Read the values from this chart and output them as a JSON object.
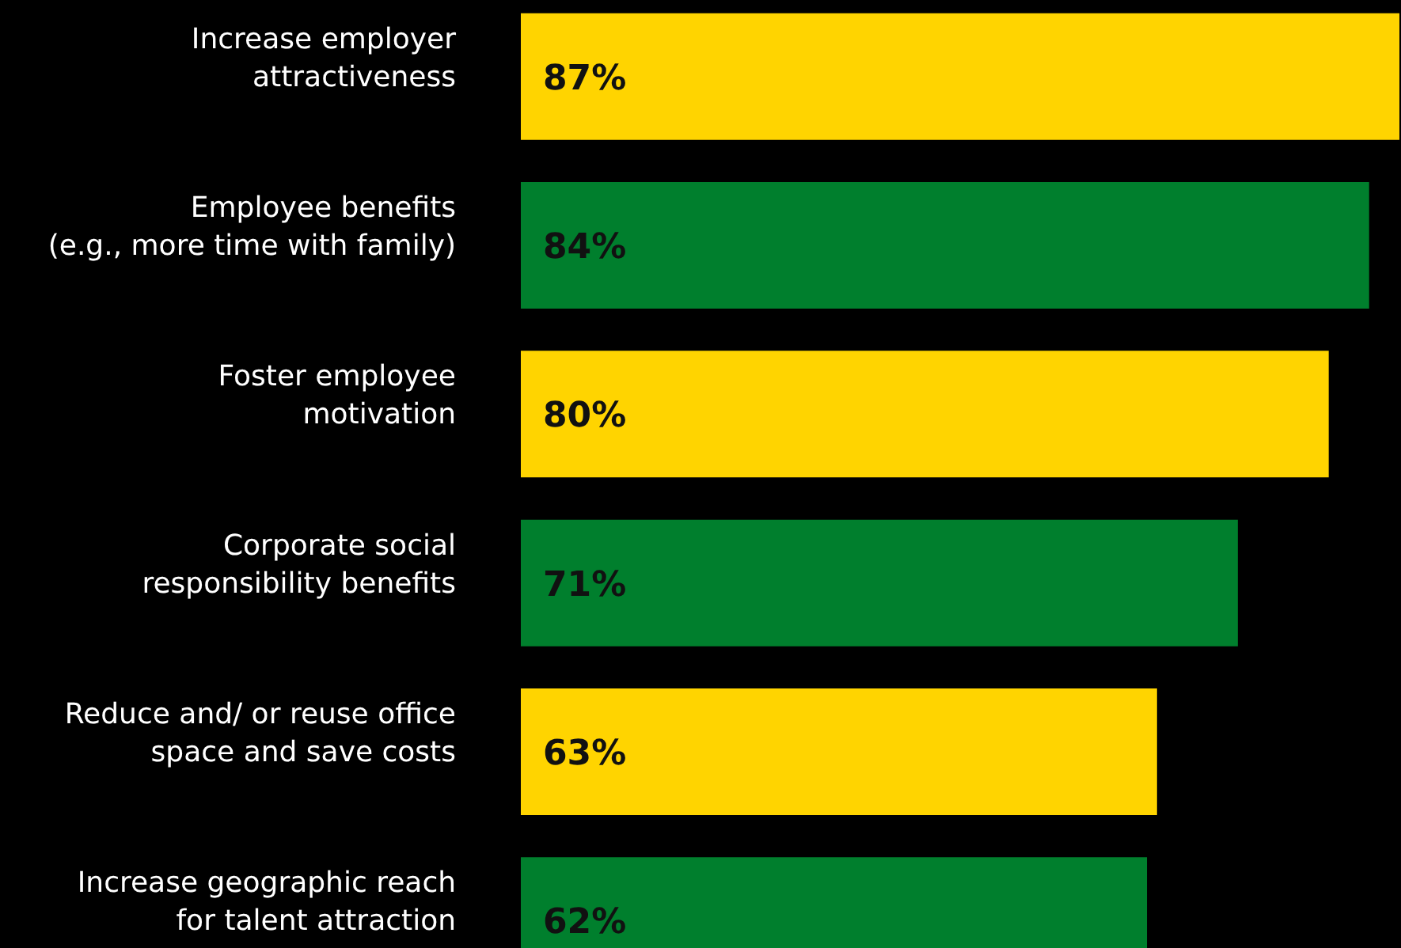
{
  "chart_data": {
    "type": "bar",
    "orientation": "horizontal",
    "categories": [
      "Increase employer\nattractiveness",
      "Employee benefits\n(e.g., more time with family)",
      "Foster employee\nmotivation",
      "Corporate social\nresponsibility benefits",
      "Reduce and/ or reuse office\nspace and save costs",
      "Increase geographic reach\nfor talent attraction"
    ],
    "values": [
      87,
      84,
      80,
      71,
      63,
      62
    ],
    "colors": [
      "#ffd400",
      "#007f2d",
      "#ffd400",
      "#007f2d",
      "#ffd400",
      "#007f2d"
    ],
    "value_labels": [
      "87%",
      "84%",
      "80%",
      "71%",
      "63%",
      "62%"
    ]
  }
}
